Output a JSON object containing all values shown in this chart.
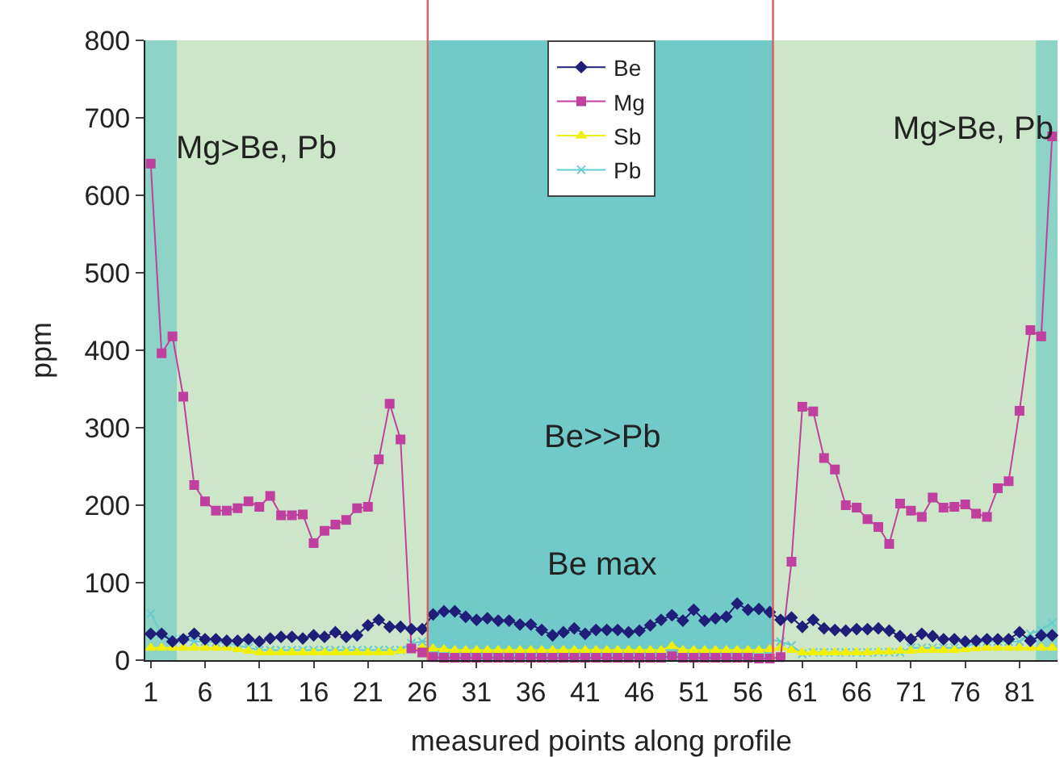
{
  "chart_data": {
    "type": "line",
    "xlabel": "measured points along profile",
    "ylabel": "ppm",
    "x": [
      1,
      2,
      3,
      4,
      5,
      6,
      7,
      8,
      9,
      10,
      11,
      12,
      13,
      14,
      15,
      16,
      17,
      18,
      19,
      20,
      21,
      22,
      23,
      24,
      25,
      26,
      27,
      28,
      29,
      30,
      31,
      32,
      33,
      34,
      35,
      36,
      37,
      38,
      39,
      40,
      41,
      42,
      43,
      44,
      45,
      46,
      47,
      48,
      49,
      50,
      51,
      52,
      53,
      54,
      55,
      56,
      57,
      58,
      59,
      60,
      61,
      62,
      63,
      64,
      65,
      66,
      67,
      68,
      69,
      70,
      71,
      72,
      73,
      74,
      75,
      76,
      77,
      78,
      79,
      80,
      81,
      82,
      83,
      84
    ],
    "xlim": [
      0.5,
      84.5
    ],
    "xticks": [
      1,
      6,
      11,
      16,
      21,
      26,
      31,
      36,
      41,
      46,
      51,
      56,
      61,
      66,
      71,
      76,
      81
    ],
    "ylim": [
      0,
      800
    ],
    "yticks": [
      0,
      100,
      200,
      300,
      400,
      500,
      600,
      700,
      800
    ],
    "grid": false,
    "legend": "top",
    "series": [
      {
        "name": "Be",
        "color": "#1f1f7a",
        "marker": "diamond",
        "values": [
          34,
          34,
          24,
          27,
          34,
          27,
          27,
          25,
          25,
          27,
          24,
          28,
          30,
          30,
          28,
          32,
          30,
          36,
          30,
          32,
          45,
          52,
          43,
          43,
          40,
          40,
          59,
          63,
          63,
          56,
          52,
          54,
          51,
          51,
          46,
          46,
          39,
          32,
          36,
          41,
          34,
          39,
          39,
          39,
          36,
          38,
          45,
          52,
          58,
          51,
          65,
          51,
          54,
          56,
          73,
          65,
          66,
          62,
          52,
          55,
          43,
          52,
          41,
          39,
          38,
          40,
          40,
          41,
          38,
          31,
          27,
          34,
          31,
          27,
          27,
          24,
          25,
          27,
          27,
          27,
          36,
          25,
          32,
          32
        ]
      },
      {
        "name": "Mg",
        "color": "#c040a0",
        "marker": "square",
        "values": [
          641,
          396,
          418,
          340,
          226,
          205,
          193,
          193,
          196,
          205,
          198,
          212,
          187,
          187,
          188,
          151,
          167,
          175,
          181,
          196,
          198,
          259,
          331,
          285,
          15,
          10,
          4,
          3,
          3,
          3,
          3,
          3,
          3,
          3,
          3,
          3,
          3,
          3,
          3,
          3,
          3,
          3,
          3,
          3,
          3,
          3,
          3,
          3,
          5,
          3,
          3,
          3,
          3,
          3,
          3,
          3,
          2,
          2,
          4,
          127,
          327,
          321,
          261,
          246,
          200,
          197,
          182,
          172,
          150,
          202,
          193,
          185,
          210,
          197,
          198,
          201,
          189,
          185,
          222,
          231,
          322,
          426,
          418,
          676
        ]
      },
      {
        "name": "Sb",
        "color": "#f0f000",
        "marker": "triangle",
        "values": [
          16,
          16,
          16,
          16,
          16,
          16,
          16,
          16,
          14,
          12,
          10,
          10,
          10,
          10,
          10,
          10,
          10,
          10,
          10,
          10,
          10,
          10,
          10,
          12,
          14,
          16,
          15,
          14,
          13,
          13,
          13,
          13,
          13,
          13,
          13,
          13,
          13,
          13,
          13,
          13,
          13,
          13,
          13,
          13,
          13,
          13,
          13,
          13,
          18,
          13,
          13,
          13,
          13,
          13,
          13,
          13,
          13,
          14,
          16,
          13,
          10,
          10,
          10,
          10,
          10,
          10,
          10,
          11,
          11,
          12,
          12,
          13,
          13,
          13,
          13,
          14,
          15,
          16,
          16,
          16,
          16,
          16,
          16,
          16
        ]
      },
      {
        "name": "Pb",
        "color": "#66cccc",
        "marker": "cross",
        "values": [
          60,
          34,
          27,
          27,
          24,
          24,
          23,
          22,
          19,
          16,
          13,
          13,
          13,
          13,
          13,
          13,
          13,
          13,
          13,
          13,
          13,
          13,
          13,
          13,
          22,
          24,
          24,
          24,
          22,
          22,
          22,
          22,
          22,
          22,
          22,
          22,
          22,
          22,
          22,
          22,
          22,
          22,
          22,
          22,
          22,
          22,
          22,
          22,
          22,
          22,
          22,
          22,
          22,
          22,
          22,
          22,
          22,
          27,
          24,
          19,
          8,
          10,
          10,
          10,
          10,
          10,
          10,
          10,
          10,
          10,
          16,
          16,
          16,
          16,
          16,
          16,
          24,
          24,
          24,
          24,
          24,
          34,
          39,
          48
        ]
      }
    ],
    "bands": [
      {
        "axis": "x",
        "from": 0.5,
        "to": 3.4,
        "color": "#8ed4c6"
      },
      {
        "axis": "x",
        "from": 3.4,
        "to": 26.5,
        "color": "#cde6c9"
      },
      {
        "axis": "x",
        "from": 26.5,
        "to": 58.3,
        "color": "#72cac8"
      },
      {
        "axis": "x",
        "from": 58.3,
        "to": 82.5,
        "color": "#cde6c9"
      },
      {
        "axis": "x",
        "from": 82.5,
        "to": 84.5,
        "color": "#8ed4c6"
      }
    ],
    "ref_lines": [
      {
        "axis": "x",
        "value": 26.5,
        "color": "#e05a5a"
      },
      {
        "axis": "x",
        "value": 58.3,
        "color": "#e05a5a"
      }
    ],
    "annotations": [
      "Mg>Be, Pb",
      "Mg>Be, Pb",
      "Be>>Pb",
      "Be max"
    ]
  }
}
